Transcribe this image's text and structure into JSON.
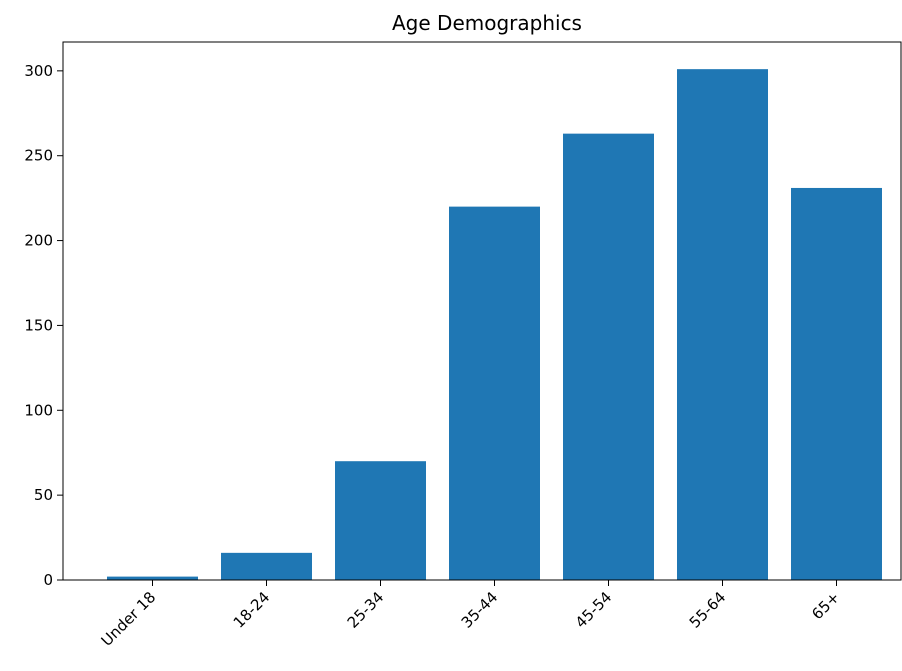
{
  "chart_data": {
    "type": "bar",
    "title": "Age Demographics",
    "xlabel": "",
    "ylabel": "",
    "categories": [
      "Under 18",
      "18-24",
      "25-34",
      "35-44",
      "45-54",
      "55-64",
      "65+"
    ],
    "values": [
      2,
      16,
      70,
      220,
      263,
      301,
      231
    ],
    "ylim": [
      0,
      317
    ],
    "yticks": [
      0,
      50,
      100,
      150,
      200,
      250,
      300
    ],
    "grid": false,
    "bar_color": "#1f77b4"
  }
}
